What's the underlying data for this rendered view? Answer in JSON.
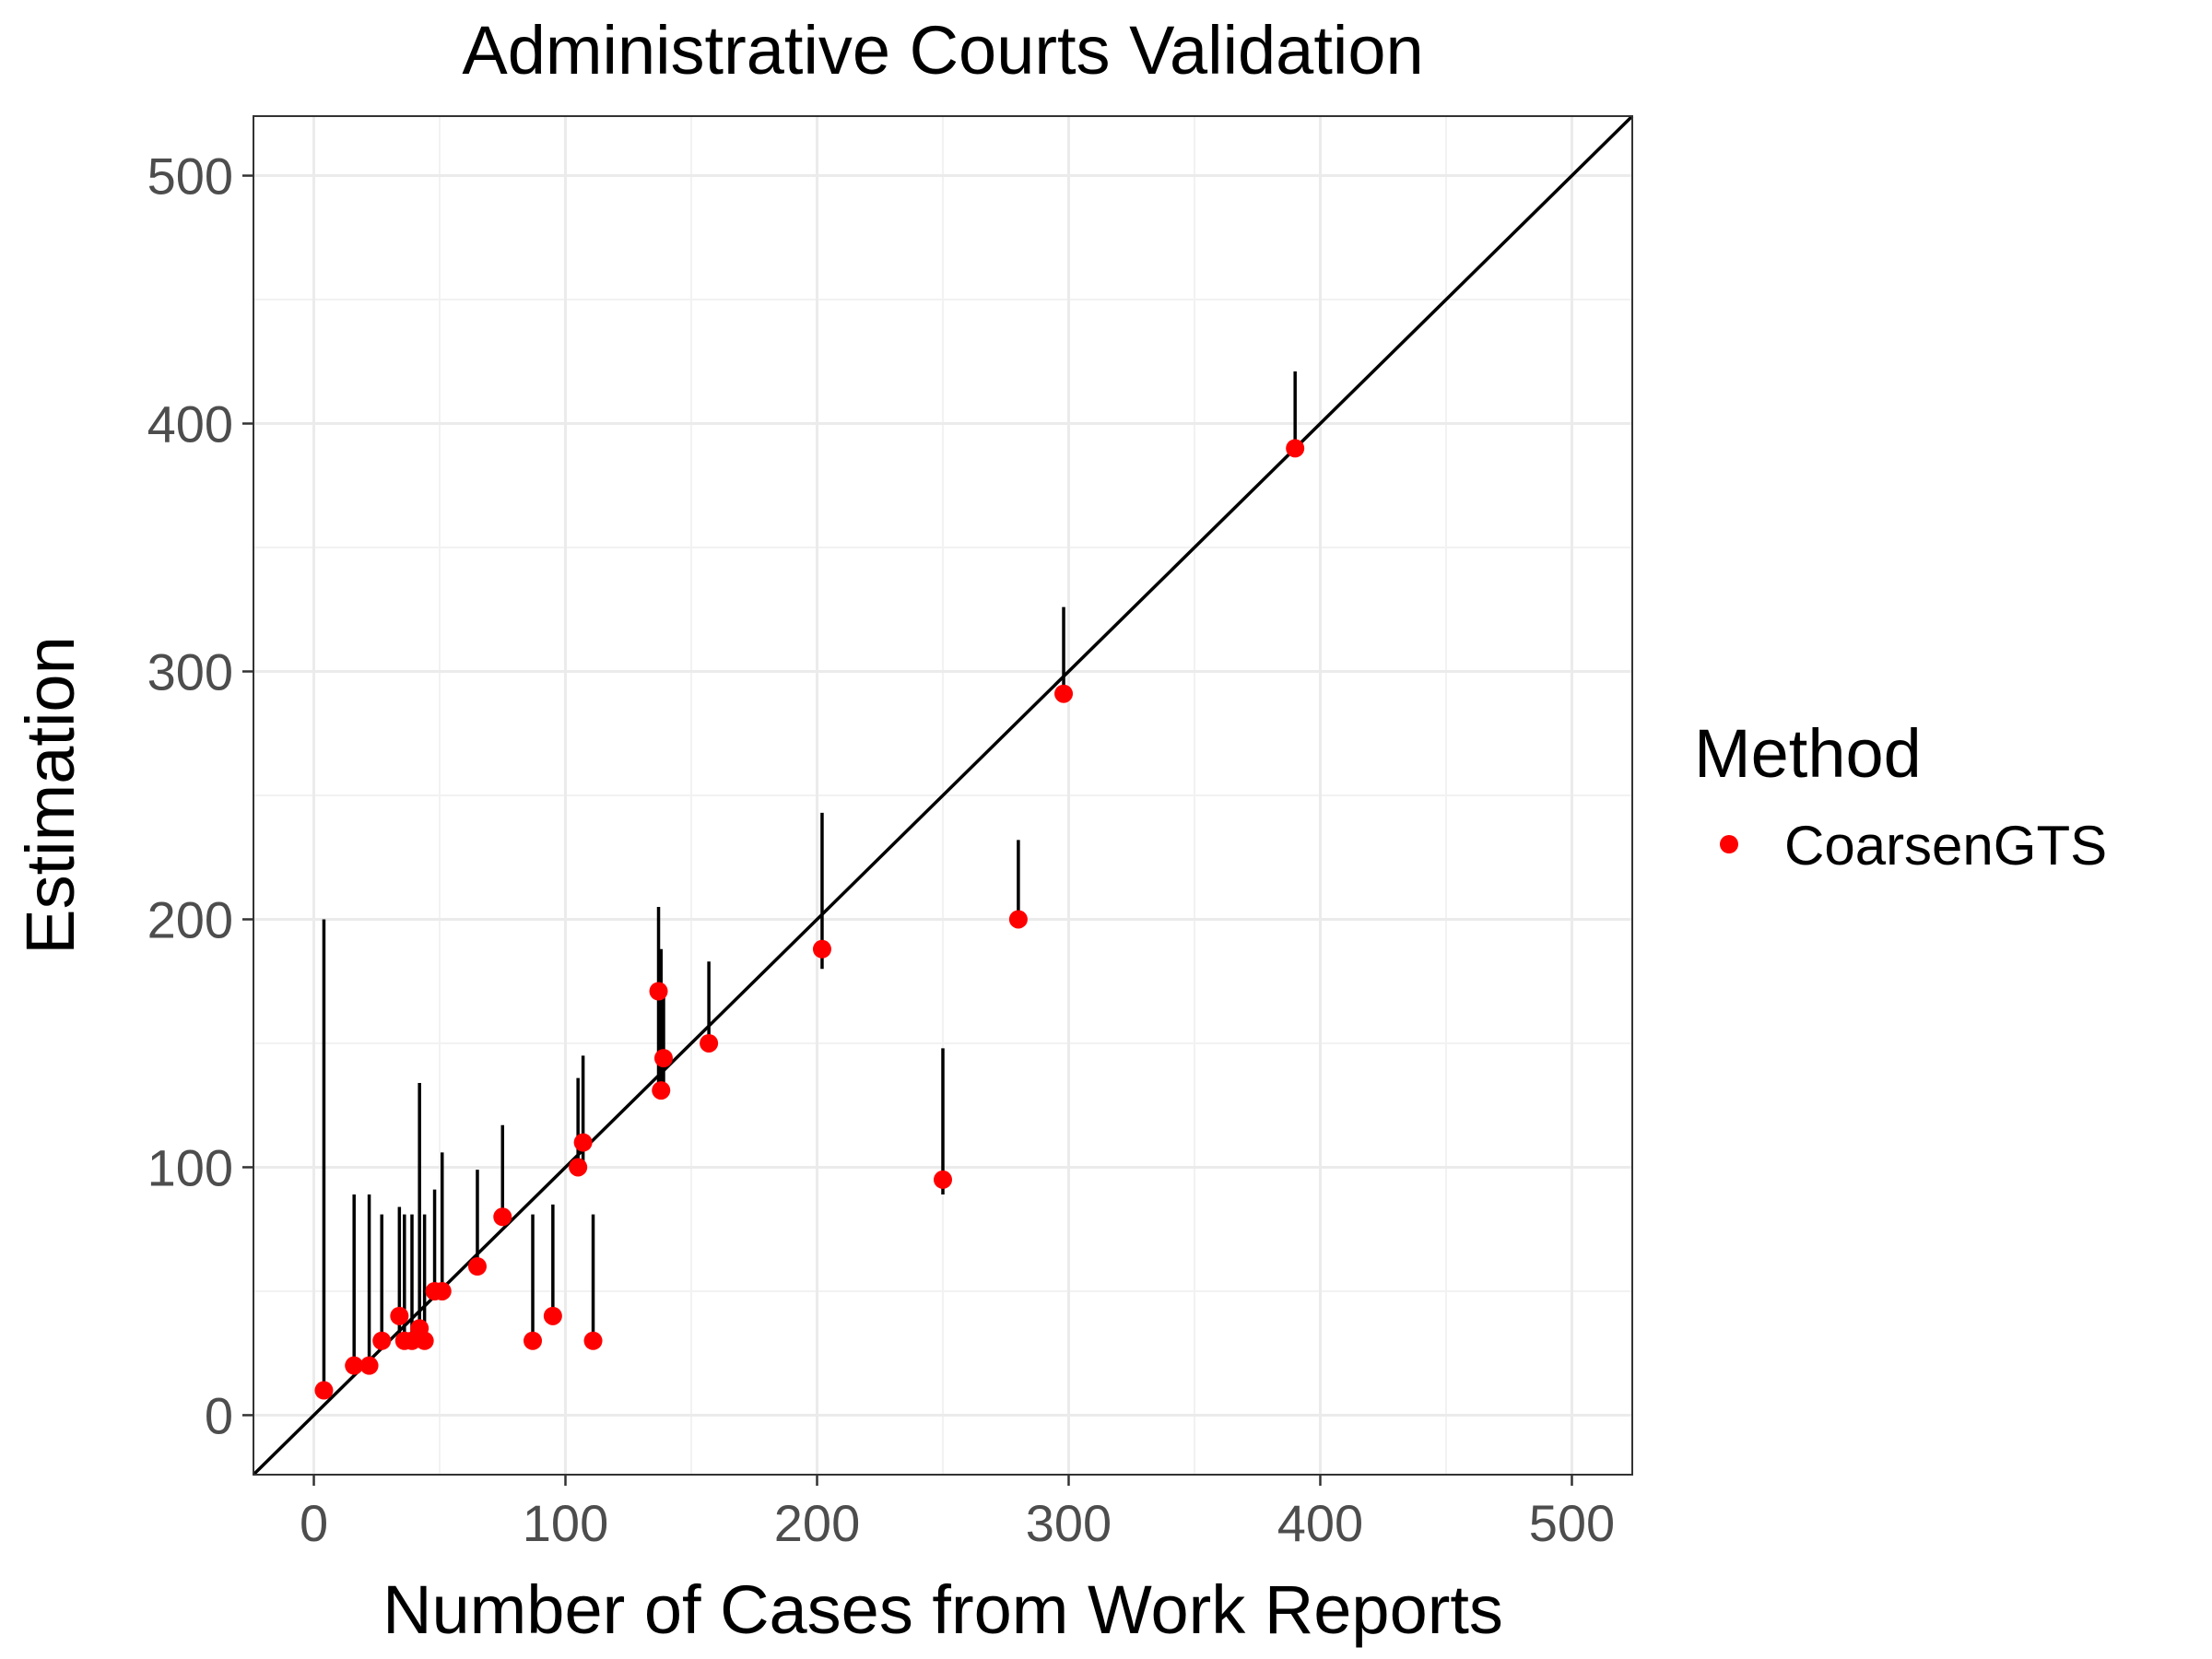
{
  "chart_data": {
    "type": "scatter",
    "title": "Administrative Courts Validation",
    "xlabel": "Number of Cases from Work Reports",
    "ylabel": "Estimation",
    "xlim": [
      -24,
      524
    ],
    "ylim": [
      -24,
      524
    ],
    "x_ticks": [
      0,
      100,
      200,
      300,
      400,
      500
    ],
    "y_ticks": [
      0,
      100,
      200,
      300,
      400,
      500
    ],
    "x_tick_labels": [
      "0",
      "100",
      "200",
      "300",
      "400",
      "500"
    ],
    "y_tick_labels": [
      "0",
      "100",
      "200",
      "300",
      "400",
      "500"
    ],
    "grid": true,
    "reference_line": {
      "slope": 1,
      "intercept": 0
    },
    "legend": {
      "title": "Method",
      "position": "right"
    },
    "series": [
      {
        "name": "CoarsenGTS",
        "color": "#ff0000",
        "points": [
          {
            "x": 4,
            "y": 10,
            "lo": 10,
            "hi": 200
          },
          {
            "x": 16,
            "y": 20,
            "lo": 20,
            "hi": 89
          },
          {
            "x": 22,
            "y": 20,
            "lo": 20,
            "hi": 89
          },
          {
            "x": 27,
            "y": 30,
            "lo": 30,
            "hi": 81
          },
          {
            "x": 34,
            "y": 40,
            "lo": 30,
            "hi": 84
          },
          {
            "x": 36,
            "y": 30,
            "lo": 30,
            "hi": 81
          },
          {
            "x": 39,
            "y": 30,
            "lo": 30,
            "hi": 81
          },
          {
            "x": 42,
            "y": 35,
            "lo": 35,
            "hi": 134
          },
          {
            "x": 44,
            "y": 30,
            "lo": 30,
            "hi": 81
          },
          {
            "x": 48,
            "y": 50,
            "lo": 50,
            "hi": 91
          },
          {
            "x": 51,
            "y": 50,
            "lo": 50,
            "hi": 106
          },
          {
            "x": 65,
            "y": 60,
            "lo": 60,
            "hi": 99
          },
          {
            "x": 75,
            "y": 80,
            "lo": 80,
            "hi": 117
          },
          {
            "x": 87,
            "y": 30,
            "lo": 30,
            "hi": 81
          },
          {
            "x": 95,
            "y": 40,
            "lo": 40,
            "hi": 85
          },
          {
            "x": 105,
            "y": 100,
            "lo": 100,
            "hi": 136
          },
          {
            "x": 107,
            "y": 110,
            "lo": 100,
            "hi": 145
          },
          {
            "x": 111,
            "y": 30,
            "lo": 30,
            "hi": 81
          },
          {
            "x": 137,
            "y": 171,
            "lo": 131,
            "hi": 205
          },
          {
            "x": 138,
            "y": 131,
            "lo": 131,
            "hi": 188
          },
          {
            "x": 139,
            "y": 144,
            "lo": 131,
            "hi": 171
          },
          {
            "x": 157,
            "y": 150,
            "lo": 150,
            "hi": 183
          },
          {
            "x": 202,
            "y": 188,
            "lo": 180,
            "hi": 243
          },
          {
            "x": 250,
            "y": 95,
            "lo": 89,
            "hi": 148
          },
          {
            "x": 280,
            "y": 200,
            "lo": 200,
            "hi": 232
          },
          {
            "x": 298,
            "y": 291,
            "lo": 291,
            "hi": 326
          },
          {
            "x": 390,
            "y": 390,
            "lo": 390,
            "hi": 421
          }
        ]
      }
    ]
  }
}
